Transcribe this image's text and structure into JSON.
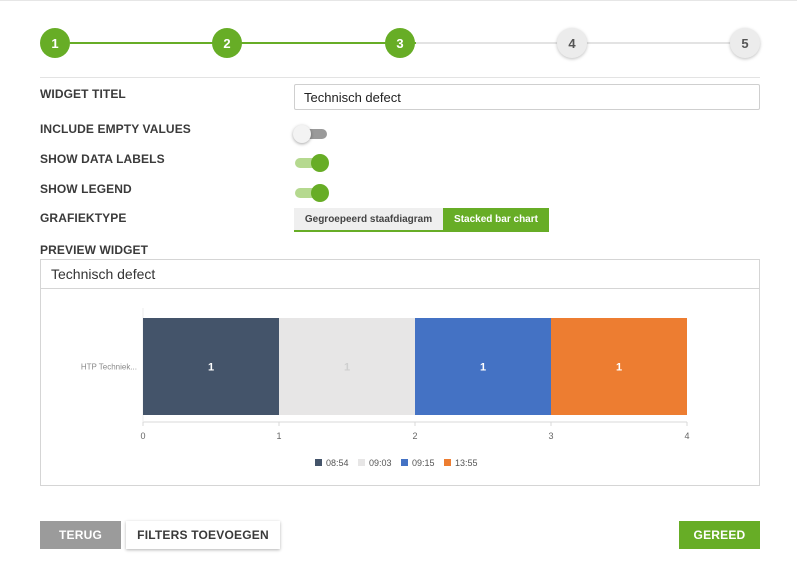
{
  "stepper": {
    "steps": [
      {
        "label": "1",
        "state": "done"
      },
      {
        "label": "2",
        "state": "done"
      },
      {
        "label": "3",
        "state": "done"
      },
      {
        "label": "4",
        "state": "todo"
      },
      {
        "label": "5",
        "state": "todo"
      }
    ],
    "accent_color": "#67ad26"
  },
  "form": {
    "widget_title_label": "WIDGET TITEL",
    "widget_title_value": "Technisch defect",
    "include_empty_label": "INCLUDE EMPTY VALUES",
    "include_empty_on": false,
    "show_data_labels_label": "SHOW DATA LABELS",
    "show_data_labels_on": true,
    "show_legend_label": "SHOW LEGEND",
    "show_legend_on": true,
    "chart_type_label": "GRAFIEKTYPE",
    "chart_type_options": [
      "Gegroepeerd staafdiagram",
      "Stacked bar chart"
    ],
    "chart_type_selected": "Stacked bar chart",
    "preview_label": "PREVIEW WIDGET"
  },
  "preview": {
    "title": "Technisch defect"
  },
  "chart_data": {
    "type": "bar",
    "orientation": "horizontal",
    "stacked": true,
    "categories": [
      "HTP Techniek..."
    ],
    "series": [
      {
        "name": "08:54",
        "values": [
          1
        ],
        "color": "#44546a"
      },
      {
        "name": "09:03",
        "values": [
          1
        ],
        "color": "#e7e6e6"
      },
      {
        "name": "09:15",
        "values": [
          1
        ],
        "color": "#4472c4"
      },
      {
        "name": "13:55",
        "values": [
          1
        ],
        "color": "#ed7d31"
      }
    ],
    "xlim": [
      0,
      4
    ],
    "xticks": [
      "0",
      "1",
      "2",
      "3",
      "4"
    ],
    "data_labels": true,
    "legend": "bottom",
    "grid": false
  },
  "buttons": {
    "back": "TERUG",
    "filters": "FILTERS TOEVOEGEN",
    "done": "GEREED"
  }
}
